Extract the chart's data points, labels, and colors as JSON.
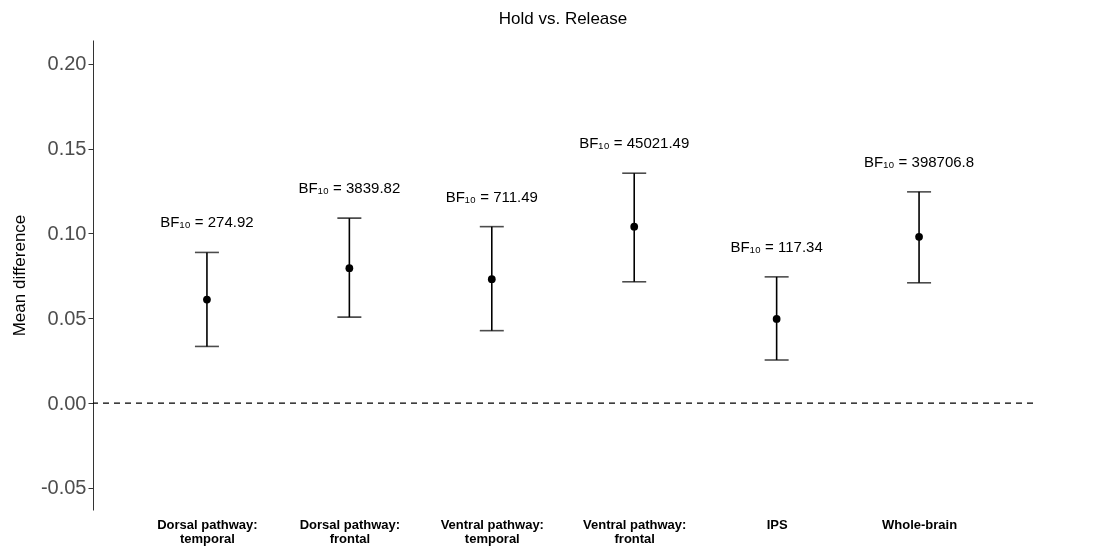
{
  "chart_data": {
    "type": "scatter",
    "title": "Hold vs. Release",
    "ylabel": "Mean difference",
    "categories": [
      "Dorsal pathway: temporal",
      "Dorsal pathway: frontal",
      "Ventral pathway: temporal",
      "Ventral pathway: frontal",
      "IPS",
      "Whole-brain"
    ],
    "series": [
      {
        "color": "#000000",
        "values": [
          0.061,
          0.0795,
          0.073,
          0.104,
          0.0496,
          0.098
        ],
        "errors": [
          [
            0.0334,
            0.0888
          ],
          [
            0.0507,
            0.109
          ],
          [
            0.0427,
            0.104
          ],
          [
            0.0715,
            0.1355
          ],
          [
            0.0254,
            0.0744
          ],
          [
            0.0709,
            0.1245
          ]
        ]
      }
    ],
    "marker": "circle",
    "ylim": [
      -0.063,
      0.214
    ],
    "yticks": [
      {
        "value": -0.05,
        "label": "-0.05"
      },
      {
        "value": 0,
        "label": "0.00"
      },
      {
        "value": 0.05,
        "label": "0.05"
      },
      {
        "value": 0.1,
        "label": "0.10"
      },
      {
        "value": 0.15,
        "label": "0.15"
      },
      {
        "value": 0.2,
        "label": "0.20"
      }
    ],
    "grid": false,
    "ref_lines": [
      {
        "axis": "y",
        "value": 0,
        "color": "#000000",
        "line_style": "dashed"
      }
    ],
    "annotations": [
      "BF₁₀ = 274.92",
      "BF₁₀ = 3839.82",
      "BF₁₀ = 711.49",
      "BF₁₀ = 45021.49",
      "BF₁₀ = 117.34",
      "BF₁₀ = 398706.8"
    ]
  }
}
